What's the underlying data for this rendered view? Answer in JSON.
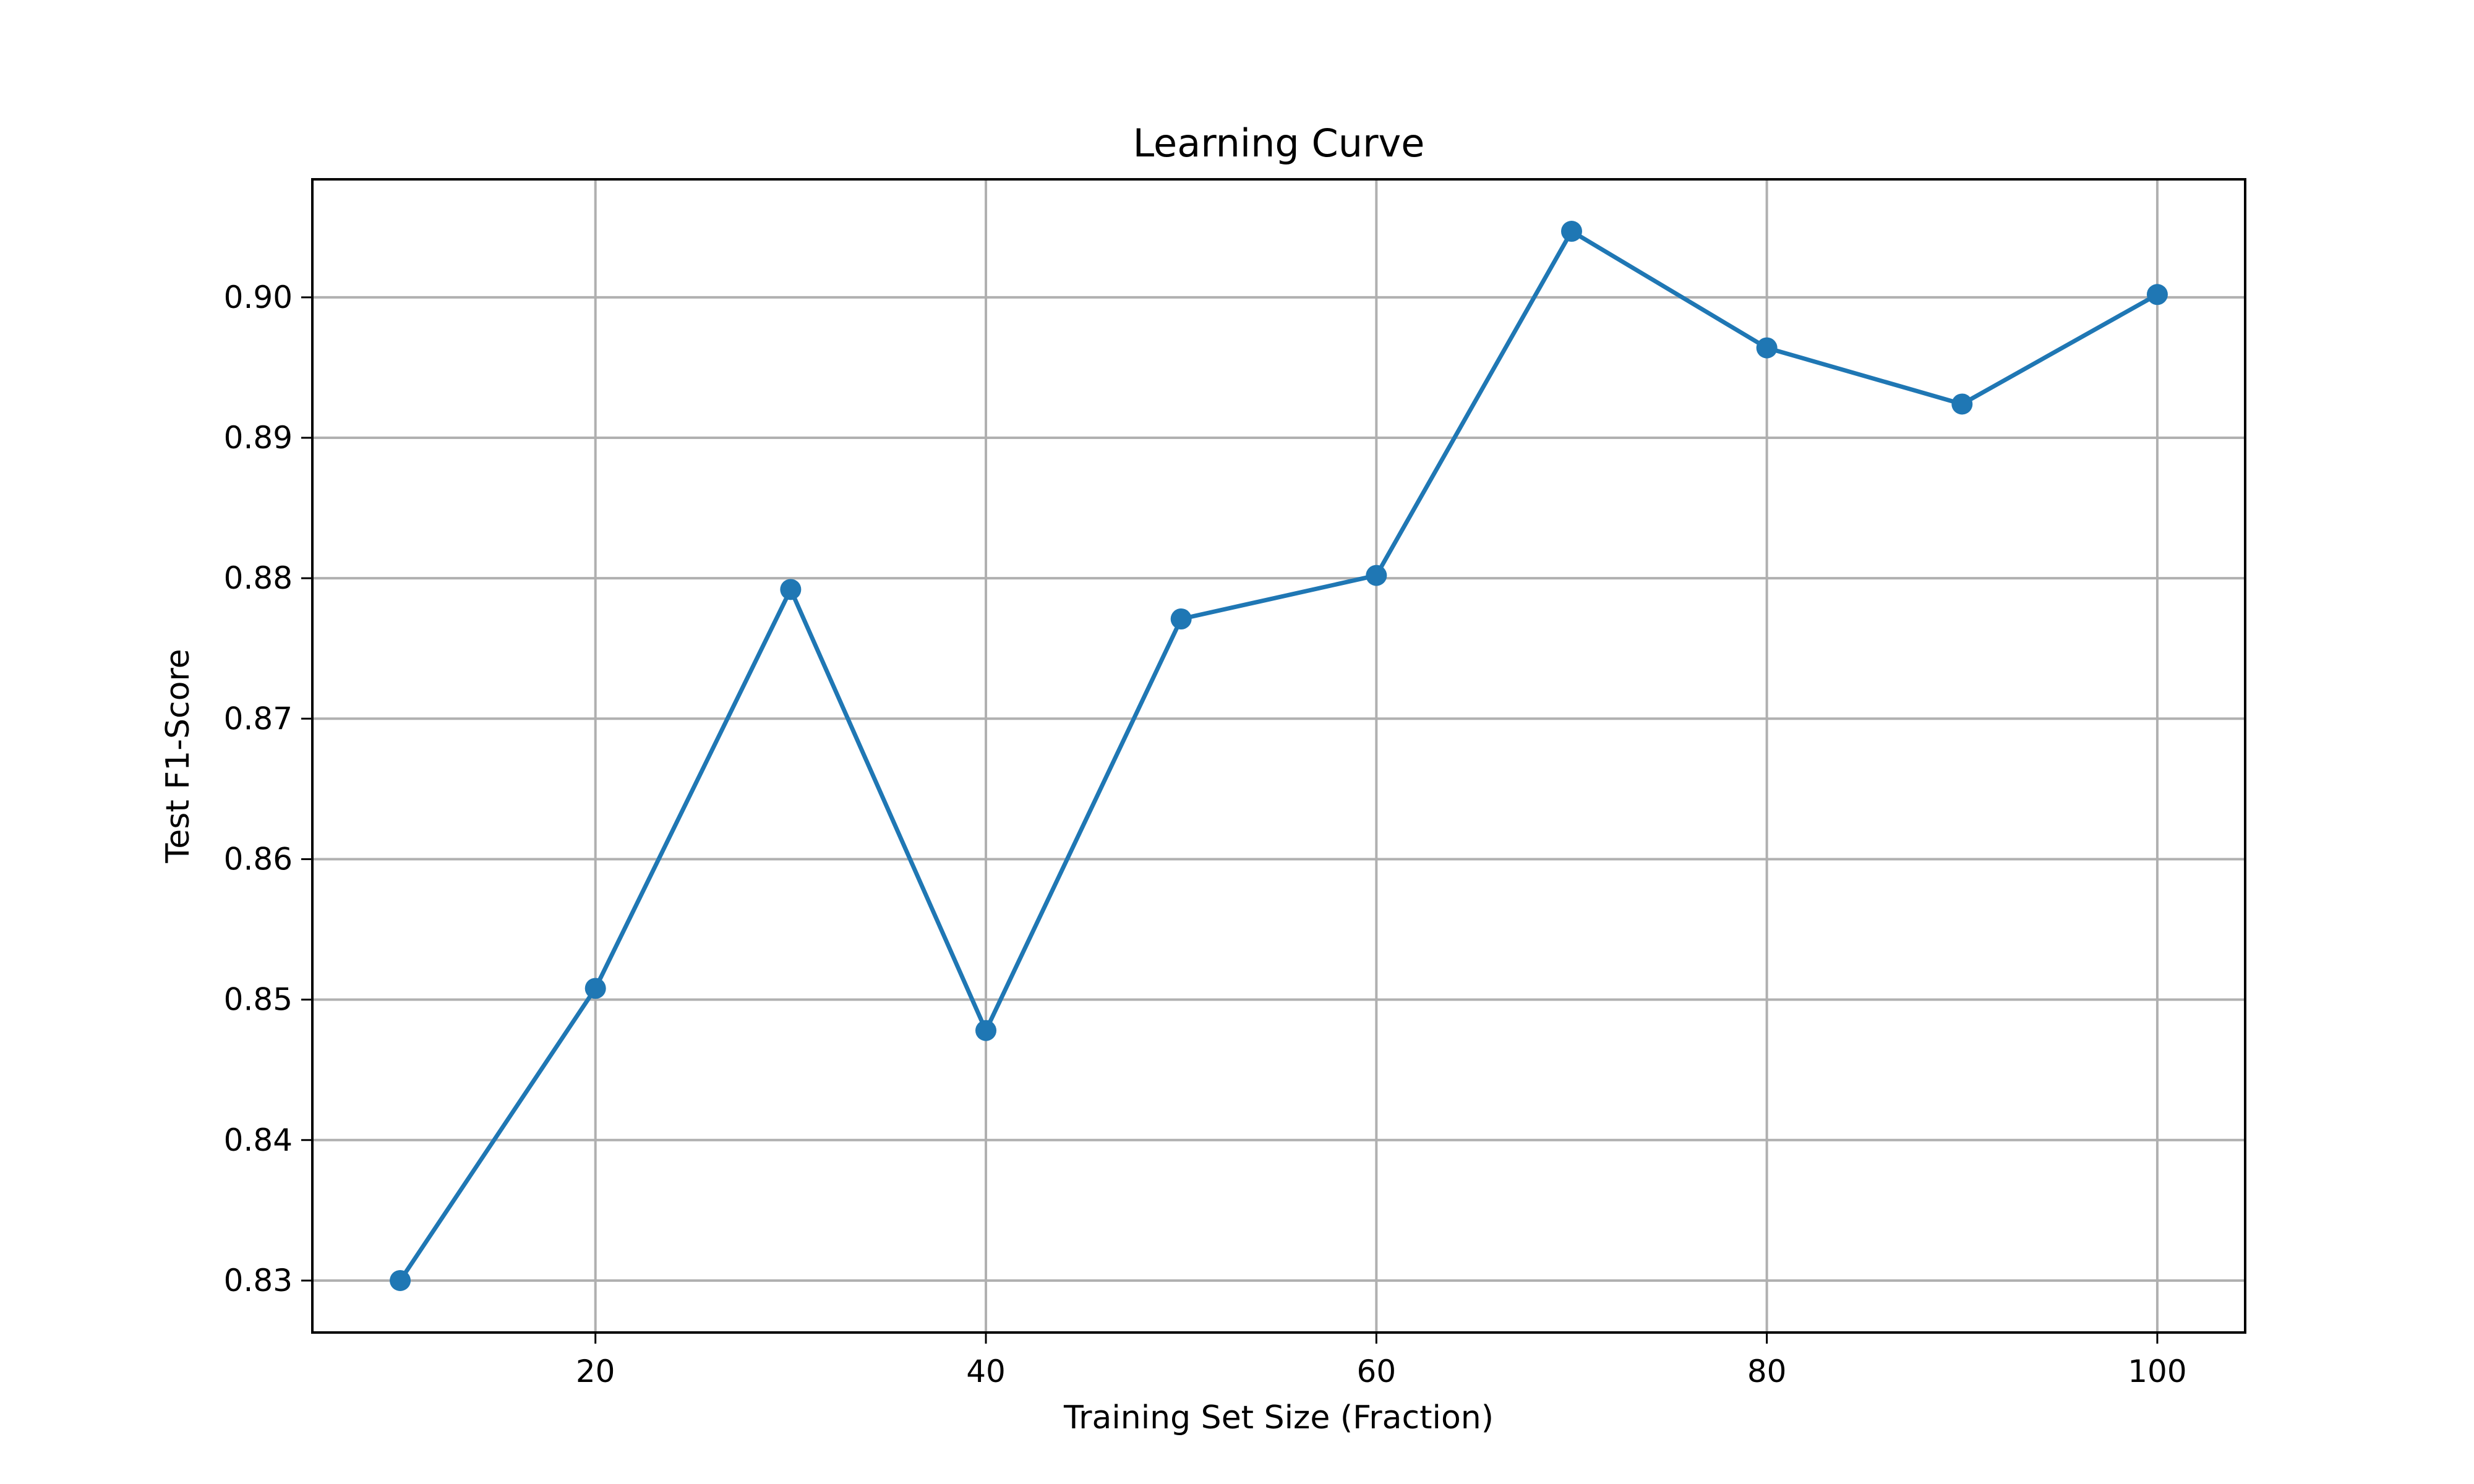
{
  "chart_data": {
    "type": "line",
    "title": "Learning Curve",
    "xlabel": "Training Set Size (Fraction)",
    "ylabel": "Test F1-Score",
    "x": [
      10,
      20,
      30,
      40,
      50,
      60,
      70,
      80,
      90,
      100
    ],
    "series": [
      {
        "values": [
          0.83,
          0.8508,
          0.8792,
          0.8478,
          0.8771,
          0.8802,
          0.9047,
          0.8964,
          0.8924,
          0.9002
        ],
        "color": "#1f77b4",
        "marker": "circle"
      }
    ],
    "xticks": [
      20,
      40,
      60,
      80,
      100
    ],
    "xtick_labels": [
      "20",
      "40",
      "60",
      "80",
      "100"
    ],
    "yticks": [
      0.83,
      0.84,
      0.85,
      0.86,
      0.87,
      0.88,
      0.89,
      0.9
    ],
    "ytick_labels": [
      "0.83",
      "0.84",
      "0.85",
      "0.86",
      "0.87",
      "0.88",
      "0.89",
      "0.90"
    ],
    "xlim": [
      5.5,
      104.5
    ],
    "ylim": [
      0.8263,
      0.9084
    ],
    "grid": true,
    "legend": "none"
  }
}
